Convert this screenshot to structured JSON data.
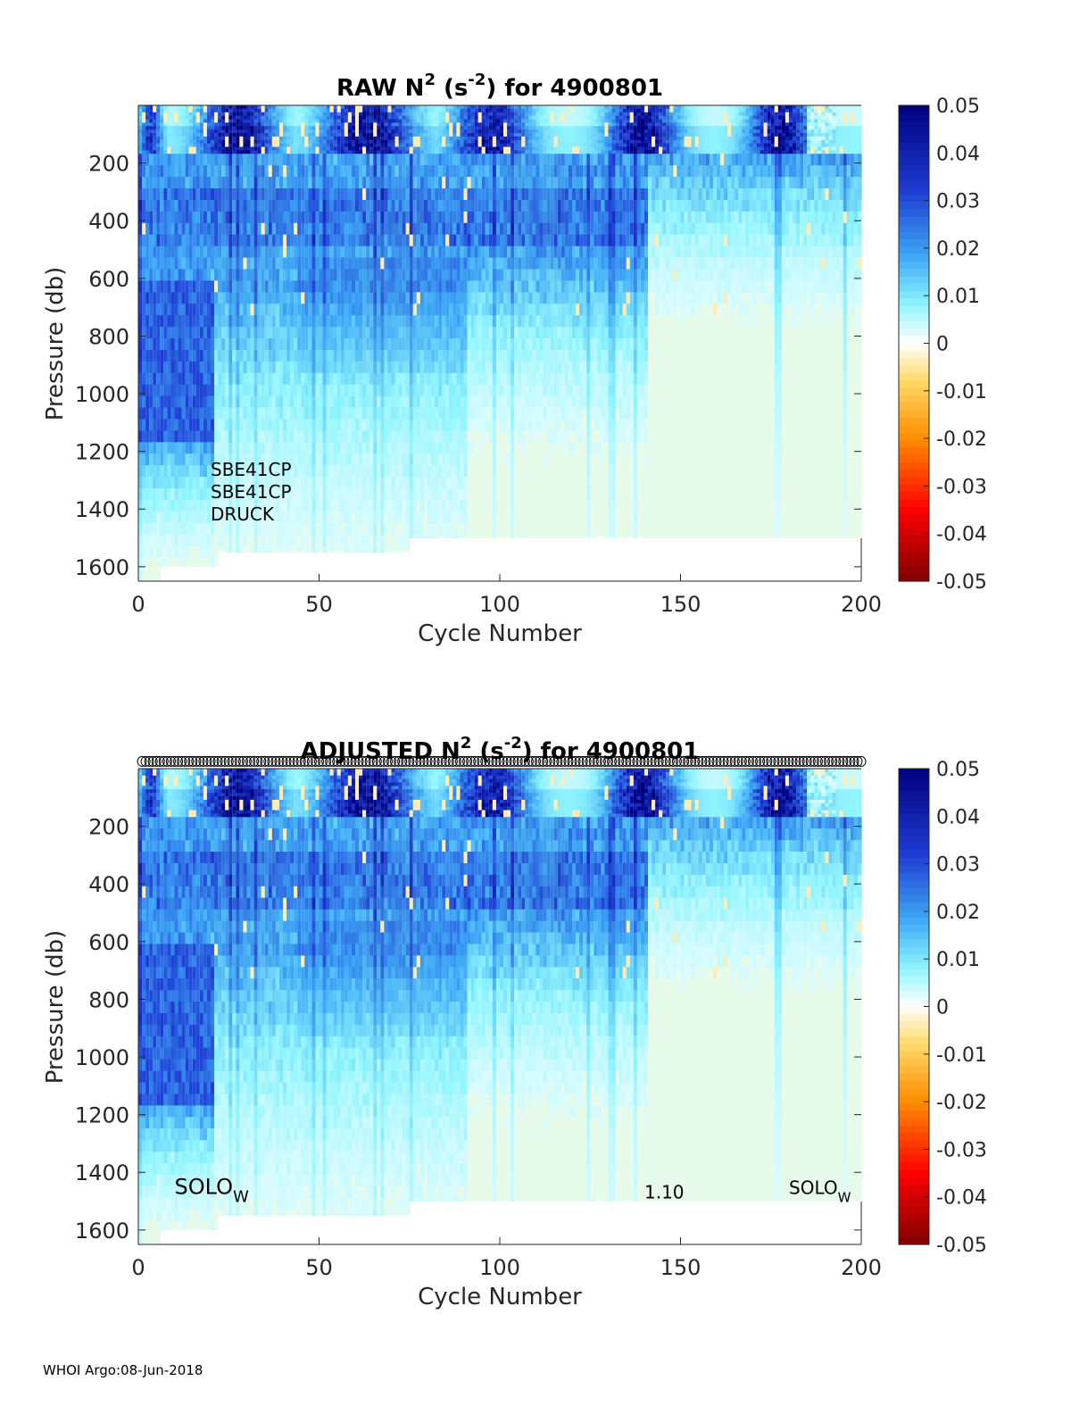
{
  "colors": {
    "fill_background": "#e6fbe9",
    "axis": "#262626",
    "colormap_stops": [
      "#7f0000",
      "#ff0000",
      "#ff8c00",
      "#ffd966",
      "#ffffff",
      "#8ff5ff",
      "#3fa9f5",
      "#1e3cd2",
      "#00007f"
    ]
  },
  "chart_data": [
    {
      "id": "raw",
      "type": "heatmap",
      "title": {
        "main": "RAW N",
        "sup1": "2",
        "mid": " (s",
        "sup2": "-2",
        "end": ") for 4900801"
      },
      "xlabel": "Cycle Number",
      "ylabel": "Pressure (db)",
      "xlim": [
        0,
        200
      ],
      "ylim": [
        1650,
        0
      ],
      "x_ticks": [
        0,
        50,
        100,
        150,
        200
      ],
      "y_ticks": [
        200,
        400,
        600,
        800,
        1000,
        1200,
        1400,
        1600
      ],
      "colorbar": {
        "min": -0.05,
        "max": 0.05,
        "tick_labels": [
          "0.05",
          "0.04",
          "0.03",
          "0.02",
          "0.01",
          "0",
          "-0.01",
          "-0.02",
          "-0.03",
          "-0.04",
          "-0.05"
        ]
      },
      "profile_depth_segments": [
        {
          "x0": 0,
          "x1": 6,
          "max_pressure": 1650
        },
        {
          "x0": 6,
          "x1": 22,
          "max_pressure": 1600
        },
        {
          "x0": 22,
          "x1": 75,
          "max_pressure": 1550
        },
        {
          "x0": 75,
          "x1": 127,
          "max_pressure": 1500
        },
        {
          "x0": 127,
          "x1": 128,
          "max_pressure": 1490
        },
        {
          "x0": 128,
          "x1": 200,
          "max_pressure": 1500
        }
      ],
      "annotations": [
        {
          "text": "SBE41CP",
          "x": 20,
          "y": 1285
        },
        {
          "text": "SBE41CP",
          "x": 20,
          "y": 1362
        },
        {
          "text": "DRUCK",
          "x": 20,
          "y": 1440
        }
      ],
      "qc_markers": false
    },
    {
      "id": "adjusted",
      "type": "heatmap",
      "title": {
        "main": "ADJUSTED N",
        "sup1": "2",
        "mid": " (s",
        "sup2": "-2",
        "end": ") for 4900801"
      },
      "xlabel": "Cycle Number",
      "ylabel": "Pressure (db)",
      "xlim": [
        0,
        200
      ],
      "ylim": [
        1650,
        0
      ],
      "x_ticks": [
        0,
        50,
        100,
        150,
        200
      ],
      "y_ticks": [
        200,
        400,
        600,
        800,
        1000,
        1200,
        1400,
        1600
      ],
      "colorbar": {
        "min": -0.05,
        "max": 0.05,
        "tick_labels": [
          "0.05",
          "0.04",
          "0.03",
          "0.02",
          "0.01",
          "0",
          "-0.01",
          "-0.02",
          "-0.03",
          "-0.04",
          "-0.05"
        ]
      },
      "profile_depth_segments": [
        {
          "x0": 0,
          "x1": 6,
          "max_pressure": 1650
        },
        {
          "x0": 6,
          "x1": 22,
          "max_pressure": 1600
        },
        {
          "x0": 22,
          "x1": 75,
          "max_pressure": 1550
        },
        {
          "x0": 75,
          "x1": 127,
          "max_pressure": 1500
        },
        {
          "x0": 127,
          "x1": 128,
          "max_pressure": 1490
        },
        {
          "x0": 128,
          "x1": 200,
          "max_pressure": 1500
        }
      ],
      "annotations": [
        {
          "text": "SOLO",
          "sub": "W",
          "x": 10,
          "y": 1475,
          "size": "large"
        },
        {
          "text": "1.10",
          "x": 140,
          "y": 1490,
          "size": "small"
        },
        {
          "text": "SOLO",
          "sub": "W",
          "x": 180,
          "y": 1475,
          "size": "small"
        }
      ],
      "qc_markers": true,
      "qc_marker_cycles_start": 1,
      "qc_marker_cycles_end": 200,
      "qc_marker_pressure": -25
    }
  ],
  "footer": {
    "text": "WHOI Argo:08-Jun-2018"
  }
}
